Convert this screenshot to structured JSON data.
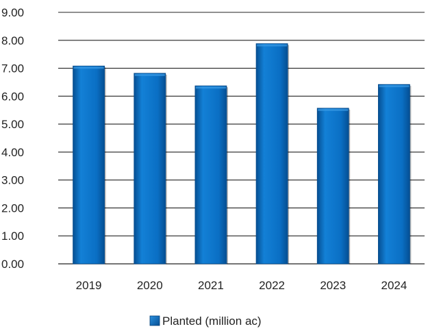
{
  "chart_data": {
    "type": "bar",
    "categories": [
      "2019",
      "2020",
      "2021",
      "2022",
      "2023",
      "2024"
    ],
    "series": [
      {
        "name": "Planted (million ac)",
        "values": [
          7.08,
          6.82,
          6.37,
          7.88,
          5.57,
          6.42
        ]
      }
    ],
    "ylim": [
      0,
      9
    ],
    "yticks": [
      "0.00",
      "1.00",
      "2.00",
      "3.00",
      "4.00",
      "5.00",
      "6.00",
      "7.00",
      "8.00",
      "9.00"
    ],
    "title": "",
    "xlabel": "",
    "ylabel": "",
    "grid": true,
    "legend_position": "bottom",
    "colors": {
      "bar": "#0a6fc4",
      "bar_light": "#2a90e0",
      "bar_dark": "#064f93",
      "grid": "#222222"
    }
  }
}
